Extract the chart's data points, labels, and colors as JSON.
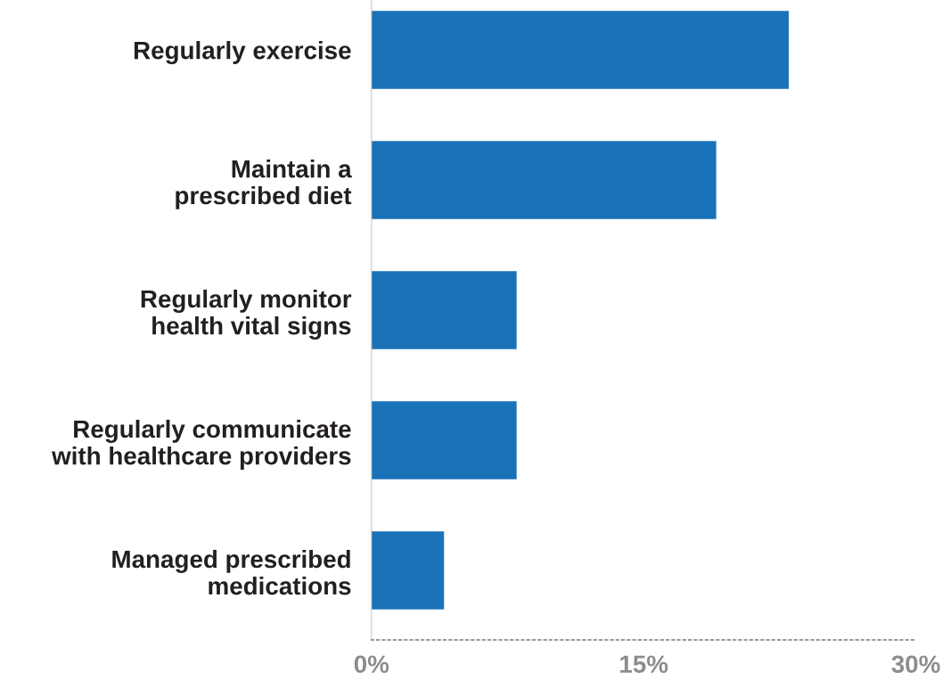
{
  "chart_data": {
    "type": "bar",
    "orientation": "horizontal",
    "categories": [
      "Regularly exercise",
      "Maintain a\nprescribed diet",
      "Regularly monitor\nhealth vital signs",
      "Regularly communicate\nwith healthcare providers",
      "Managed prescribed\nmedications"
    ],
    "values": [
      23,
      19,
      8,
      8,
      4
    ],
    "color": "#1a72b8",
    "xlim": [
      0,
      30
    ],
    "xticks": [
      {
        "value": 0,
        "label": "0%"
      },
      {
        "value": 15,
        "label": "15%"
      },
      {
        "value": 30,
        "label": "30%"
      }
    ],
    "grid": false,
    "legend": false
  }
}
